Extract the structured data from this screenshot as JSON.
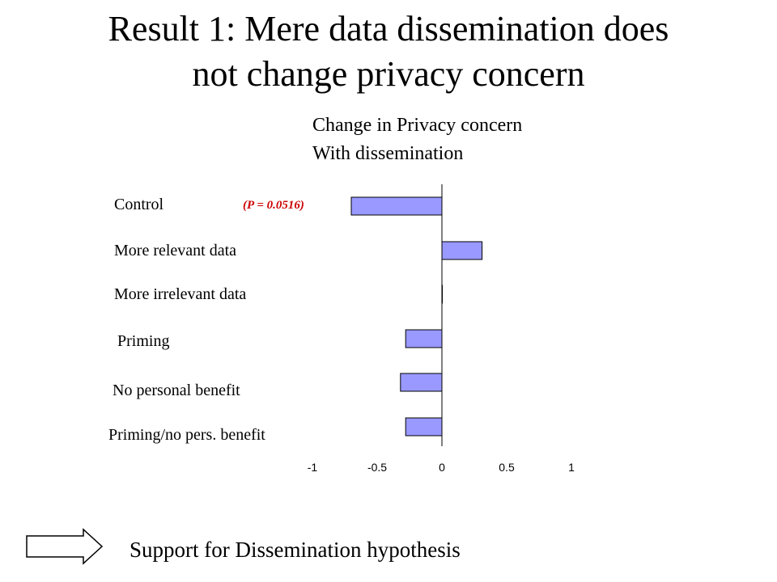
{
  "slide": {
    "title_line1": "Result 1: Mere data dissemination does",
    "title_line2": "not change privacy concern",
    "footer": "Support for Dissemination hypothesis",
    "arrow_icon": "right-arrow-icon"
  },
  "chart_data": {
    "type": "bar",
    "orientation": "horizontal",
    "title_line1": "Change in Privacy concern",
    "title_line2": "With dissemination",
    "categories": [
      "Control",
      "More relevant data",
      "More irrelevant data",
      "Priming",
      "No personal benefit",
      "Priming/no pers. benefit"
    ],
    "values": [
      -0.7,
      0.31,
      0.0,
      -0.28,
      -0.32,
      -0.28
    ],
    "xlim": [
      -1,
      1
    ],
    "xticks": [
      "-1",
      "-0.5",
      "0",
      "0.5",
      "1"
    ],
    "annotation": "(P = 0.0516)",
    "bar_color": "#9999ff",
    "grid": false
  }
}
